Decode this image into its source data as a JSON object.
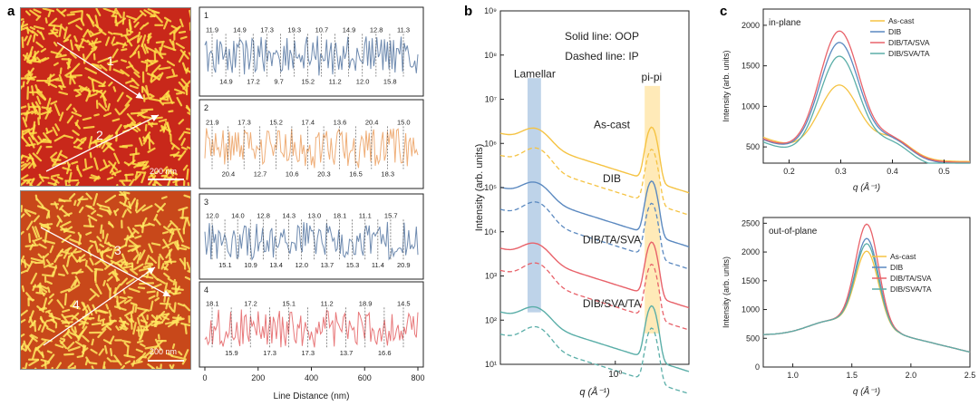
{
  "panel_labels": {
    "a": "a",
    "b": "b",
    "c": "c"
  },
  "afm_images": [
    {
      "id": "top",
      "scale_text": "200 nm",
      "line_labels": [
        "1",
        "2"
      ],
      "colors": [
        "#c8281a",
        "#ffe04a"
      ]
    },
    {
      "id": "bottom",
      "scale_text": "200 nm",
      "line_labels": [
        "3",
        "4"
      ],
      "colors": [
        "#c8481a",
        "#ffe760"
      ]
    }
  ],
  "chart_data": [
    {
      "id": "profiles",
      "type": "line",
      "xlabel": "Line Distance (nm)",
      "xlim": [
        0,
        800
      ],
      "xticks": [
        "0",
        "200",
        "400",
        "600",
        "800"
      ],
      "panels": [
        {
          "label": "1",
          "color": "#6f8bb0",
          "annotations": [
            "11.9",
            "14.9",
            "14.9",
            "17.2",
            "17.3",
            "9.7",
            "19.3",
            "15.2",
            "10.7",
            "11.2",
            "14.9",
            "12.0",
            "12.8",
            "15.8",
            "11.3"
          ]
        },
        {
          "label": "2",
          "color": "#efae78",
          "annotations": [
            "21.9",
            "20.4",
            "17.3",
            "12.7",
            "15.2",
            "10.6",
            "17.4",
            "20.3",
            "13.6",
            "16.5",
            "20.4",
            "18.3",
            "15.0"
          ]
        },
        {
          "label": "3",
          "color": "#6f8bb0",
          "annotations": [
            "12.0",
            "15.1",
            "14.0",
            "10.9",
            "12.8",
            "13.4",
            "14.3",
            "12.0",
            "13.0",
            "13.7",
            "18.1",
            "15.3",
            "11.1",
            "11.4",
            "15.7",
            "20.9"
          ]
        },
        {
          "label": "4",
          "color": "#e8787a",
          "annotations": [
            "18.1",
            "15.9",
            "17.2",
            "17.3",
            "15.1",
            "17.3",
            "11.2",
            "13.7",
            "18.9",
            "16.6",
            "14.5"
          ]
        }
      ]
    },
    {
      "id": "b",
      "type": "line",
      "xlabel": "q (Å⁻¹)",
      "ylabel": "Intensity (arb. units)",
      "xlim": [
        0.18,
        3.0
      ],
      "xscale": "log",
      "xticks": [
        "10⁰"
      ],
      "xtick_values": [
        1.0
      ],
      "yscale": "log",
      "ylim": [
        10,
        1000000000
      ],
      "yticks": [
        "10¹",
        "10²",
        "10³",
        "10⁴",
        "10⁵",
        "10⁶",
        "10⁷",
        "10⁸",
        "10⁹"
      ],
      "notes": [
        "Solid line: OOP",
        "Dashed line: IP"
      ],
      "region_labels": [
        "Lamellar",
        "pi-pi"
      ],
      "regions": [
        {
          "name": "Lamellar",
          "qmin": 0.27,
          "qmax": 0.33,
          "color": "#a8c4e2"
        },
        {
          "name": "pi-pi",
          "qmin": 1.55,
          "qmax": 1.95,
          "color": "#ffe3a0"
        }
      ],
      "series": [
        {
          "name": "As-cast",
          "color": "#f5c343",
          "offset": 1000000,
          "label_q": 0.95
        },
        {
          "name": "DIB",
          "color": "#5b89c0",
          "offset": 60000,
          "label_q": 0.95
        },
        {
          "name": "DIB/TA/SVA",
          "color": "#e8626a",
          "offset": 2500,
          "label_q": 0.95
        },
        {
          "name": "DIB/SVA/TA",
          "color": "#5aaea8",
          "offset": 90,
          "label_q": 0.95
        }
      ]
    },
    {
      "id": "c-in-plane",
      "type": "line",
      "title": "in-plane",
      "xlabel": "q (Å⁻¹)",
      "ylabel": "Intensity (arb. units)",
      "xlim": [
        0.15,
        0.55
      ],
      "ylim": [
        300,
        2200
      ],
      "xticks": [
        "0.2",
        "0.3",
        "0.4",
        "0.5"
      ],
      "yticks": [
        "500",
        "1000",
        "1500",
        "2000"
      ],
      "series": [
        {
          "name": "As-cast",
          "color": "#f5c343",
          "peak": 1380,
          "base": 560,
          "left": 620
        },
        {
          "name": "DIB",
          "color": "#5b89c0",
          "peak": 1930,
          "base": 520,
          "left": 590
        },
        {
          "name": "DIB/TA/SVA",
          "color": "#e8626a",
          "peak": 2060,
          "base": 540,
          "left": 600
        },
        {
          "name": "DIB/SVA/TA",
          "color": "#5aaea8",
          "peak": 1800,
          "base": 440,
          "left": 560
        }
      ]
    },
    {
      "id": "c-out-of-plane",
      "type": "line",
      "title": "out-of-plane",
      "xlabel": "q (Å⁻¹)",
      "ylabel": "Intensity (arb. units)",
      "xlim": [
        0.75,
        2.5
      ],
      "ylim": [
        0,
        2600
      ],
      "xticks": [
        "1.0",
        "1.5",
        "2.0",
        "2.5"
      ],
      "yticks": [
        "0",
        "500",
        "1000",
        "1500",
        "2000",
        "2500"
      ],
      "series": [
        {
          "name": "As-cast",
          "color": "#f5c343",
          "peak": 2050
        },
        {
          "name": "DIB",
          "color": "#5b89c0",
          "peak": 2270
        },
        {
          "name": "DIB/TA/SVA",
          "color": "#e8626a",
          "peak": 2520
        },
        {
          "name": "DIB/SVA/TA",
          "color": "#5aaea8",
          "peak": 2180
        }
      ]
    }
  ]
}
